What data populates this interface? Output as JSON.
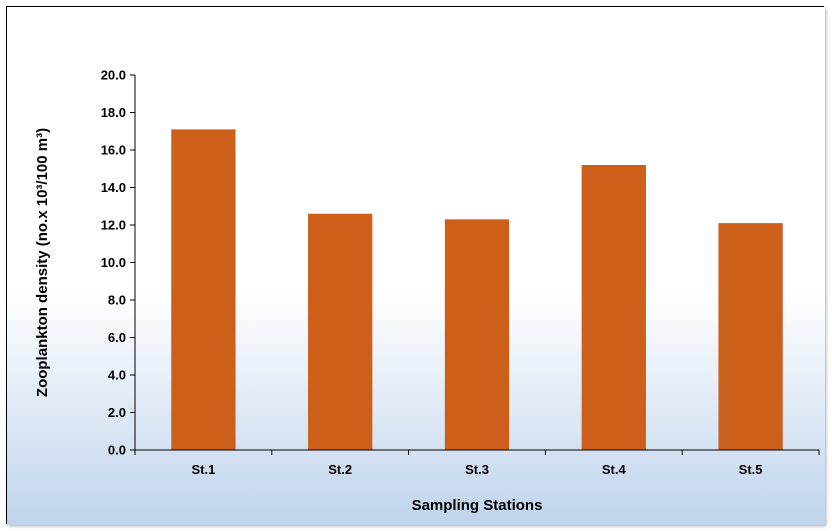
{
  "chart_data": {
    "type": "bar",
    "title": "",
    "xlabel": "Sampling Stations",
    "ylabel": "Zooplankton density (no.x 10³/100 m³)",
    "categories": [
      "St.1",
      "St.2",
      "St.3",
      "St.4",
      "St.5"
    ],
    "values": [
      17.1,
      12.6,
      12.3,
      15.2,
      12.1
    ],
    "ylim": [
      0,
      20
    ],
    "yticks": [
      "0.0",
      "2.0",
      "4.0",
      "6.0",
      "8.0",
      "10.0",
      "12.0",
      "14.0",
      "16.0",
      "18.0",
      "20.0"
    ],
    "grid": false,
    "legend": "none",
    "colors": {
      "bar": "#CC5F1A",
      "background_top": "#FFFFFF",
      "background_bottom": "#BFD4EC",
      "axis": "#000000"
    }
  }
}
